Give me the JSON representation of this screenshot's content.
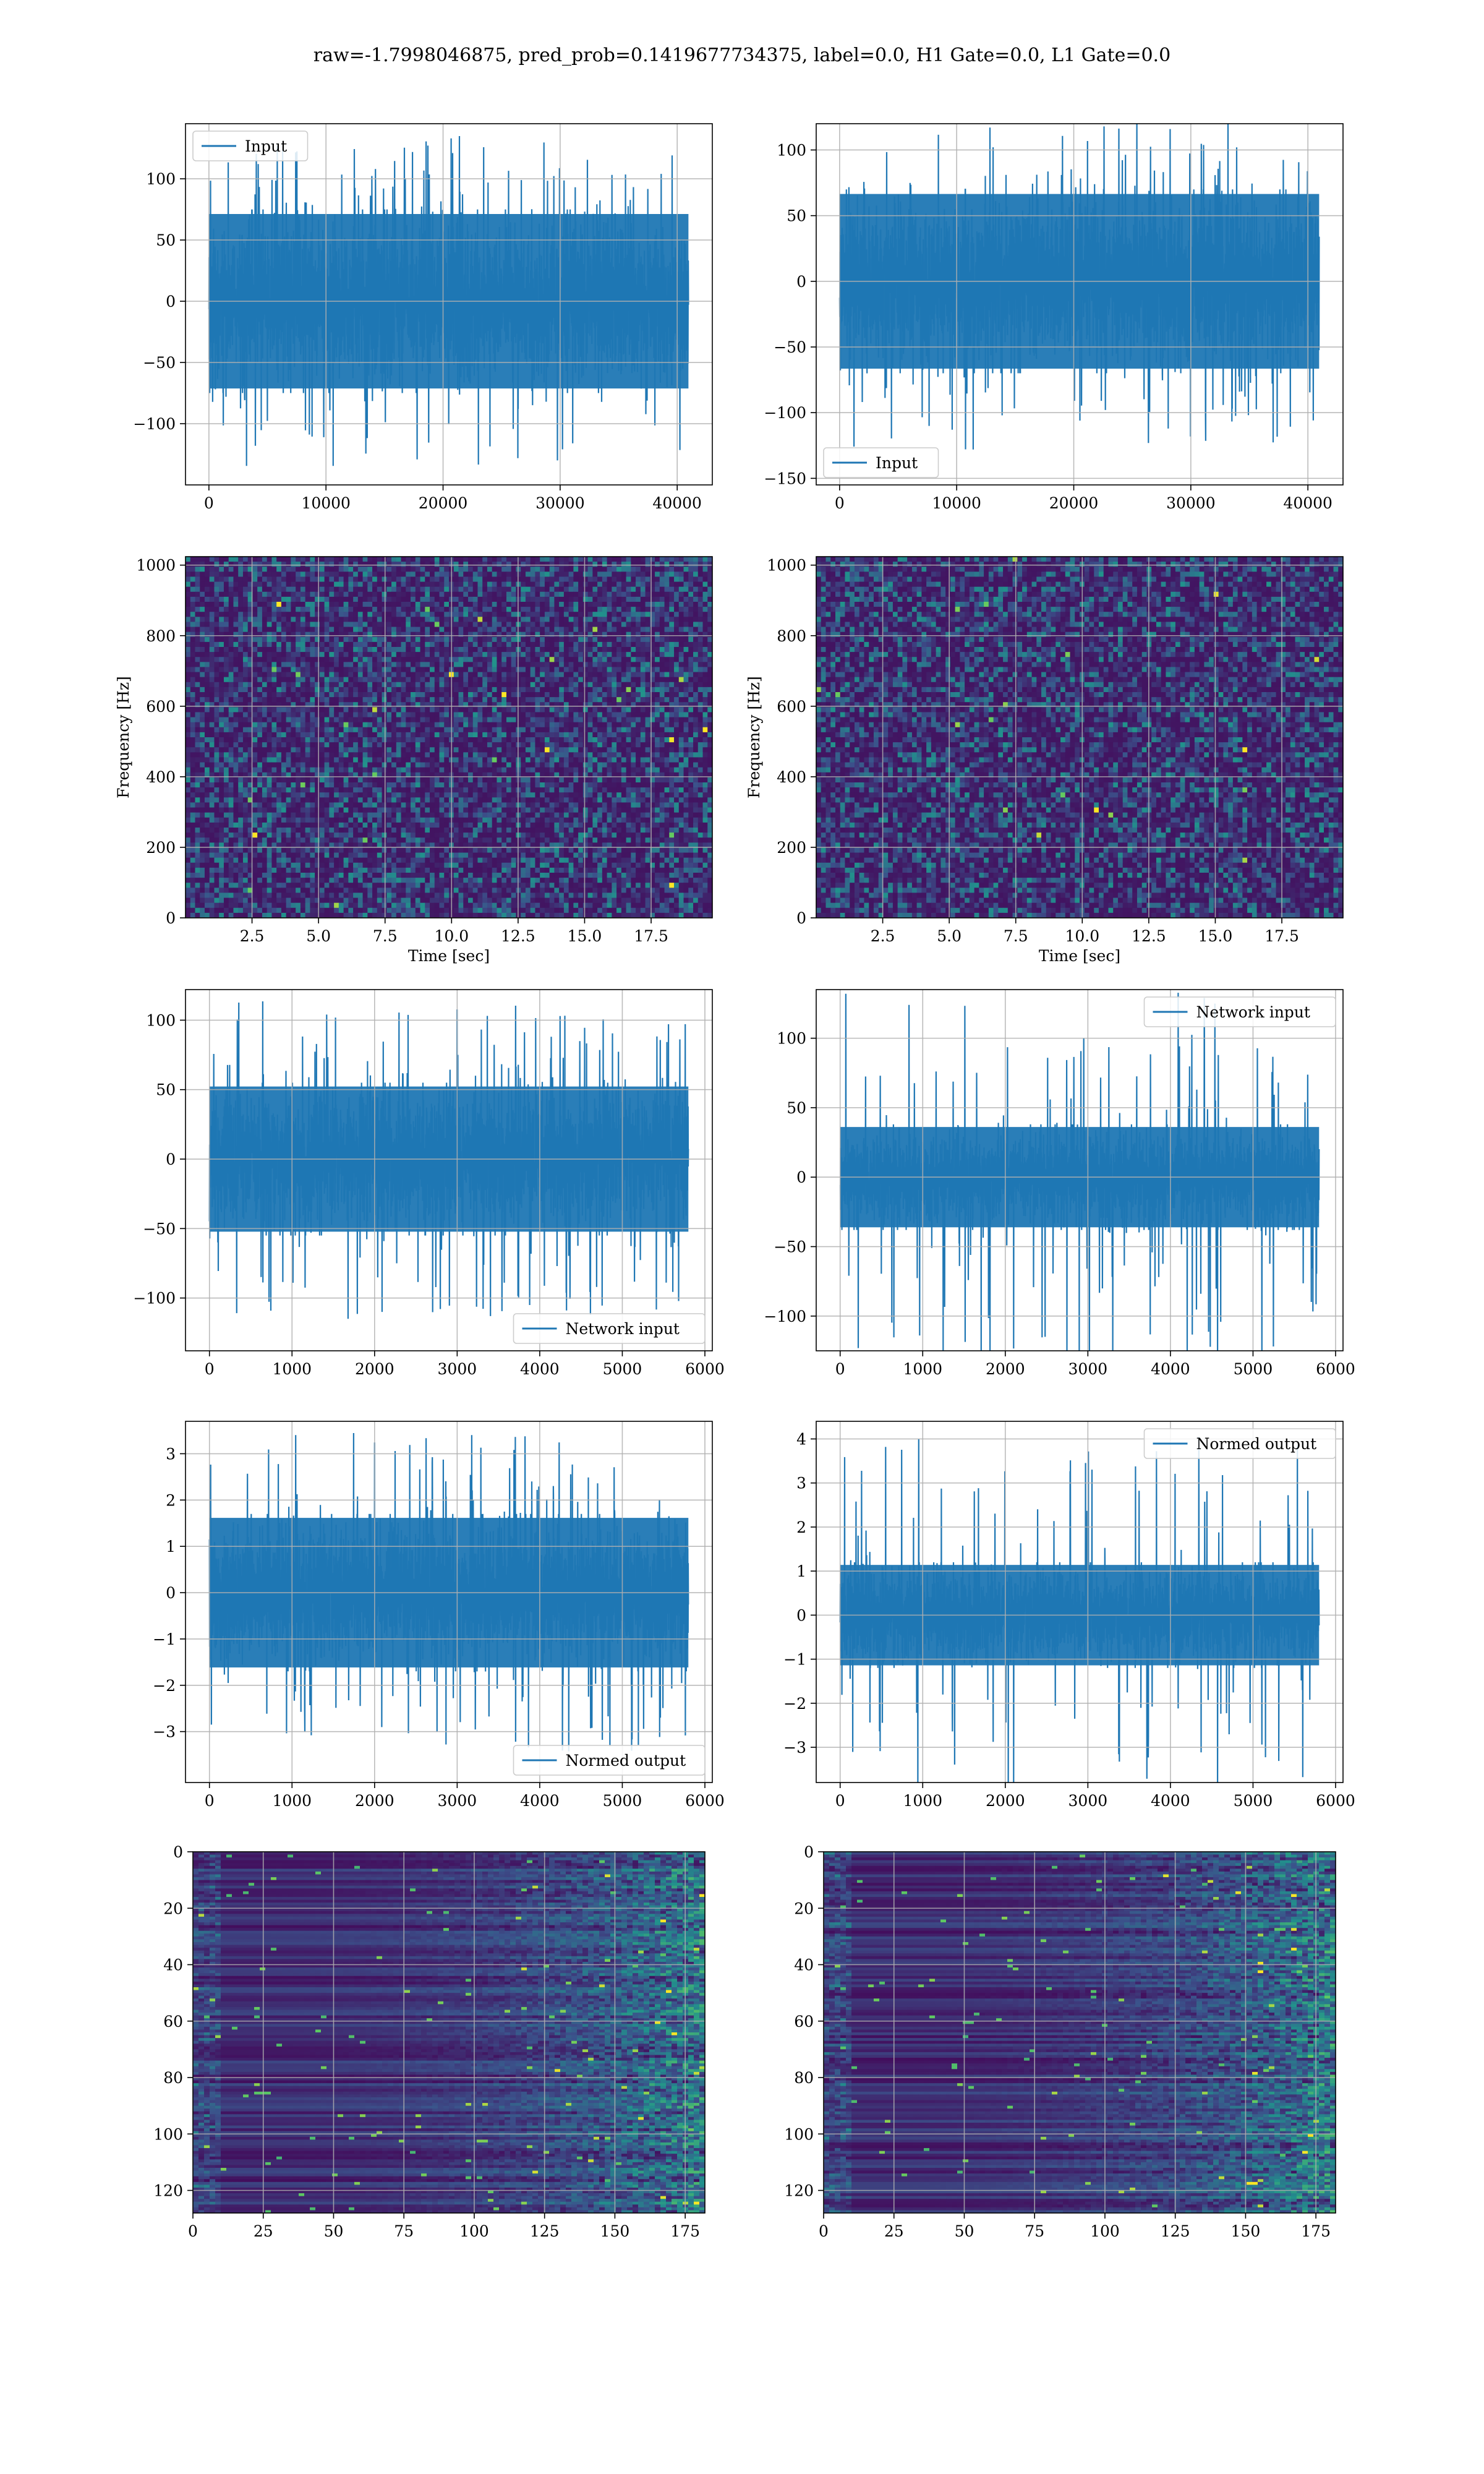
{
  "figure": {
    "title": "raw=-1.7998046875, pred_prob=0.1419677734375, label=0.0, H1 Gate=0.0, L1 Gate=0.0",
    "colors": {
      "line": "#1f77b4",
      "grid": "#b0b0b0",
      "axes": "#000000",
      "heat_low": "#440154",
      "heat_mid1": "#3b528b",
      "heat_mid2": "#21918c",
      "heat_mid3": "#5ec962",
      "heat_high": "#fde725"
    }
  },
  "chart_data": [
    {
      "type": "line",
      "series": [
        {
          "name": "Input",
          "amplitude": 75,
          "spike_max": 135
        }
      ],
      "x": [
        0,
        40960
      ],
      "xlim": [
        -2000,
        43000
      ],
      "ylim": [
        -150,
        145
      ],
      "xticks": [
        0,
        10000,
        20000,
        30000,
        40000
      ],
      "xtick_labels": [
        "0",
        "10000",
        "20000",
        "30000",
        "40000"
      ],
      "yticks": [
        -100,
        -50,
        0,
        50,
        100
      ],
      "ytick_labels": [
        "−100",
        "−50",
        "0",
        "50",
        "100"
      ],
      "legend": "upper left",
      "grid": true,
      "xlabel": "",
      "ylabel": ""
    },
    {
      "type": "line",
      "series": [
        {
          "name": "Input",
          "amplitude": 70,
          "spike_max": 130
        }
      ],
      "x": [
        0,
        40960
      ],
      "xlim": [
        -2000,
        43000
      ],
      "ylim": [
        -155,
        120
      ],
      "xticks": [
        0,
        10000,
        20000,
        30000,
        40000
      ],
      "xtick_labels": [
        "0",
        "10000",
        "20000",
        "30000",
        "40000"
      ],
      "yticks": [
        -150,
        -100,
        -50,
        0,
        50,
        100
      ],
      "ytick_labels": [
        "−150",
        "−100",
        "−50",
        "0",
        "50",
        "100"
      ],
      "legend": "lower left",
      "grid": true,
      "xlabel": "",
      "ylabel": ""
    },
    {
      "type": "heatmap",
      "xlim": [
        0,
        19.8
      ],
      "ylim": [
        0,
        1024
      ],
      "xticks": [
        2.5,
        5.0,
        7.5,
        10.0,
        12.5,
        15.0,
        17.5
      ],
      "xtick_labels": [
        "2.5",
        "5.0",
        "7.5",
        "10.0",
        "12.5",
        "15.0",
        "17.5"
      ],
      "yticks": [
        0,
        200,
        400,
        600,
        800,
        1000
      ],
      "ytick_labels": [
        "0",
        "200",
        "400",
        "600",
        "800",
        "1000"
      ],
      "xlabel": "Time [sec]",
      "ylabel": "Frequency [Hz]",
      "grid": true,
      "colormap": "viridis"
    },
    {
      "type": "heatmap",
      "xlim": [
        0,
        19.8
      ],
      "ylim": [
        0,
        1024
      ],
      "xticks": [
        2.5,
        5.0,
        7.5,
        10.0,
        12.5,
        15.0,
        17.5
      ],
      "xtick_labels": [
        "2.5",
        "5.0",
        "7.5",
        "10.0",
        "12.5",
        "15.0",
        "17.5"
      ],
      "yticks": [
        0,
        200,
        400,
        600,
        800,
        1000
      ],
      "ytick_labels": [
        "0",
        "200",
        "400",
        "600",
        "800",
        "1000"
      ],
      "xlabel": "Time [sec]",
      "ylabel": "Frequency [Hz]",
      "grid": true,
      "colormap": "viridis"
    },
    {
      "type": "line",
      "series": [
        {
          "name": "Network input",
          "amplitude": 55,
          "spike_max": 115
        }
      ],
      "x": [
        0,
        5800
      ],
      "xlim": [
        -290,
        6090
      ],
      "ylim": [
        -138,
        122
      ],
      "xticks": [
        0,
        1000,
        2000,
        3000,
        4000,
        5000,
        6000
      ],
      "xtick_labels": [
        "0",
        "1000",
        "2000",
        "3000",
        "4000",
        "5000",
        "6000"
      ],
      "yticks": [
        -100,
        -50,
        0,
        50,
        100
      ],
      "ytick_labels": [
        "−100",
        "−50",
        "0",
        "50",
        "100"
      ],
      "legend": "lower right",
      "grid": true,
      "xlabel": "",
      "ylabel": ""
    },
    {
      "type": "line",
      "series": [
        {
          "name": "Network input",
          "amplitude": 38,
          "spike_max": 135
        }
      ],
      "x": [
        0,
        5800
      ],
      "xlim": [
        -290,
        6090
      ],
      "ylim": [
        -125,
        135
      ],
      "xticks": [
        0,
        1000,
        2000,
        3000,
        4000,
        5000,
        6000
      ],
      "xtick_labels": [
        "0",
        "1000",
        "2000",
        "3000",
        "4000",
        "5000",
        "6000"
      ],
      "yticks": [
        -100,
        -50,
        0,
        50,
        100
      ],
      "ytick_labels": [
        "−100",
        "−50",
        "0",
        "50",
        "100"
      ],
      "legend": "upper right",
      "grid": true,
      "xlabel": "",
      "ylabel": ""
    },
    {
      "type": "line",
      "series": [
        {
          "name": "Normed output",
          "amplitude": 1.7,
          "spike_max": 3.5
        }
      ],
      "x": [
        0,
        5800
      ],
      "xlim": [
        -290,
        6090
      ],
      "ylim": [
        -4.1,
        3.7
      ],
      "xticks": [
        0,
        1000,
        2000,
        3000,
        4000,
        5000,
        6000
      ],
      "xtick_labels": [
        "0",
        "1000",
        "2000",
        "3000",
        "4000",
        "5000",
        "6000"
      ],
      "yticks": [
        -3,
        -2,
        -1,
        0,
        1,
        2,
        3
      ],
      "ytick_labels": [
        "−3",
        "−2",
        "−1",
        "0",
        "1",
        "2",
        "3"
      ],
      "legend": "lower right",
      "grid": true,
      "xlabel": "",
      "ylabel": ""
    },
    {
      "type": "line",
      "series": [
        {
          "name": "Normed output",
          "amplitude": 1.2,
          "spike_max": 4.1
        }
      ],
      "x": [
        0,
        5800
      ],
      "xlim": [
        -290,
        6090
      ],
      "ylim": [
        -3.8,
        4.4
      ],
      "xticks": [
        0,
        1000,
        2000,
        3000,
        4000,
        5000,
        6000
      ],
      "xtick_labels": [
        "0",
        "1000",
        "2000",
        "3000",
        "4000",
        "5000",
        "6000"
      ],
      "yticks": [
        -3,
        -2,
        -1,
        0,
        1,
        2,
        3,
        4
      ],
      "ytick_labels": [
        "−3",
        "−2",
        "−1",
        "0",
        "1",
        "2",
        "3",
        "4"
      ],
      "legend": "upper right",
      "grid": true,
      "xlabel": "",
      "ylabel": ""
    },
    {
      "type": "heatmap",
      "xlim": [
        0,
        182
      ],
      "ylim": [
        128,
        0
      ],
      "xticks": [
        0,
        25,
        50,
        75,
        100,
        125,
        150,
        175
      ],
      "xtick_labels": [
        "0",
        "25",
        "50",
        "75",
        "100",
        "125",
        "150",
        "175"
      ],
      "yticks": [
        0,
        20,
        40,
        60,
        80,
        100,
        120
      ],
      "ytick_labels": [
        "0",
        "20",
        "40",
        "60",
        "80",
        "100",
        "120"
      ],
      "xlabel": "",
      "ylabel": "",
      "grid": true,
      "colormap": "viridis"
    },
    {
      "type": "heatmap",
      "xlim": [
        0,
        182
      ],
      "ylim": [
        128,
        0
      ],
      "xticks": [
        0,
        25,
        50,
        75,
        100,
        125,
        150,
        175
      ],
      "xtick_labels": [
        "0",
        "25",
        "50",
        "75",
        "100",
        "125",
        "150",
        "175"
      ],
      "yticks": [
        0,
        20,
        40,
        60,
        80,
        100,
        120
      ],
      "ytick_labels": [
        "0",
        "20",
        "40",
        "60",
        "80",
        "100",
        "120"
      ],
      "xlabel": "",
      "ylabel": "",
      "grid": true,
      "colormap": "viridis"
    }
  ]
}
